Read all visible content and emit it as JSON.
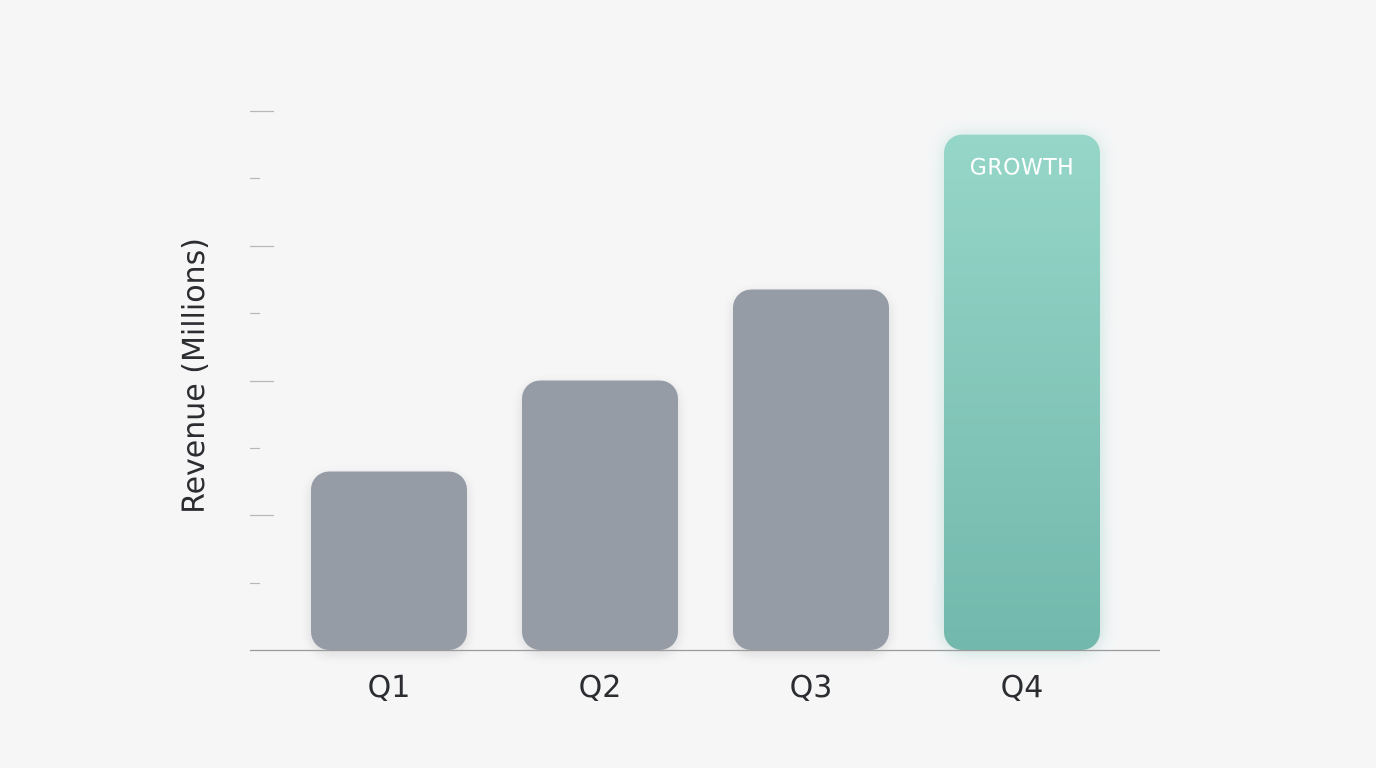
{
  "chart_data": {
    "type": "bar",
    "categories": [
      "Q1",
      "Q2",
      "Q3",
      "Q4"
    ],
    "values": [
      26.5,
      40,
      53.5,
      76.5
    ],
    "highlight": {
      "index": 3,
      "label": "GROWTH"
    },
    "title": "",
    "xlabel": "",
    "ylabel": "Revenue (Millions)",
    "ylim": [
      0,
      80
    ],
    "grid": false,
    "colors": {
      "bar": "#959ca6",
      "highlight_top": "#95d6c8",
      "highlight_bottom": "#72b8ac",
      "axis": "#9a9a9a",
      "tick": "#b8b8b8",
      "background": "#f6f6f7"
    }
  }
}
